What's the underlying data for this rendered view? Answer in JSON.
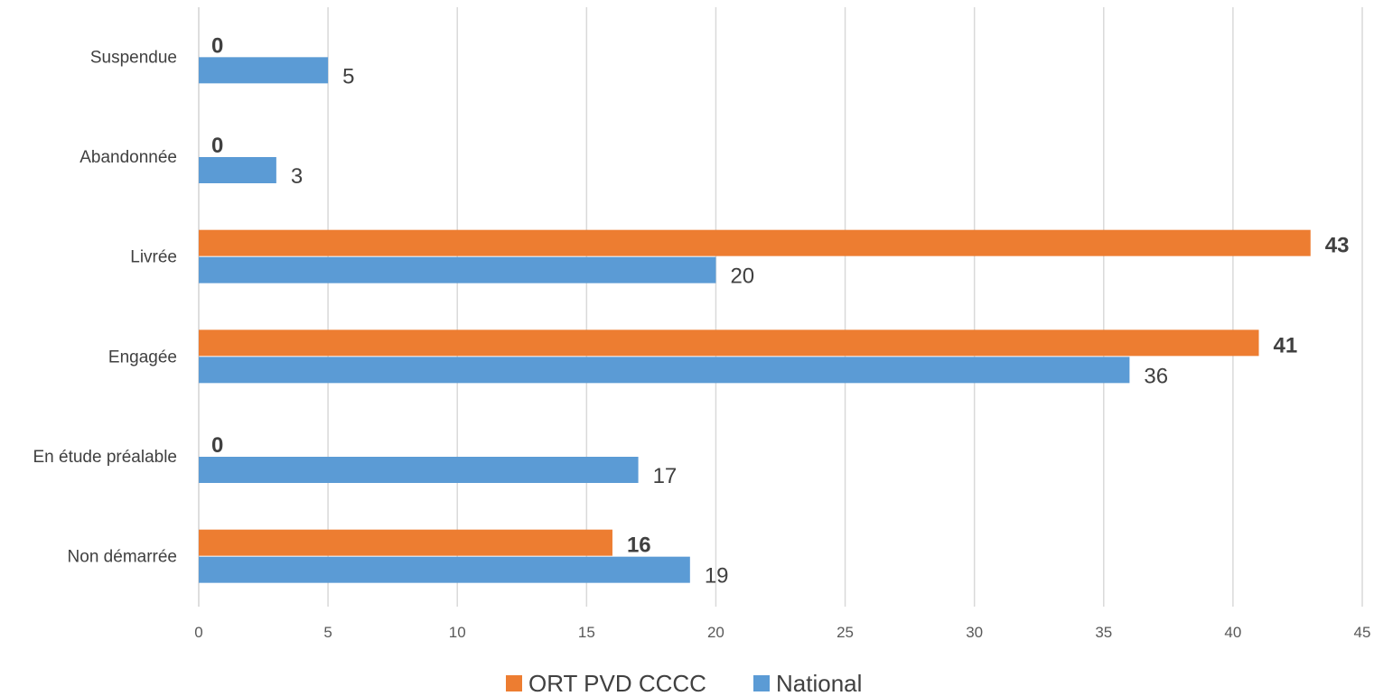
{
  "chart_data": {
    "type": "bar",
    "orientation": "horizontal",
    "categories": [
      "Non démarrée",
      "En étude préalable",
      "Engagée",
      "Livrée",
      "Abandonnée",
      "Suspendue"
    ],
    "series": [
      {
        "name": "ORT PVD CCCC",
        "color": "#ED7D31",
        "values": [
          16,
          0,
          41,
          43,
          0,
          0
        ],
        "labels": [
          "16",
          "0",
          "41",
          "43",
          "0",
          "0"
        ],
        "label_weight": "bold"
      },
      {
        "name": "National",
        "color": "#5B9BD5",
        "values": [
          19,
          17,
          36,
          20,
          3,
          5
        ],
        "labels": [
          "19",
          "17",
          "36",
          "20",
          "3",
          "5"
        ],
        "label_weight": "normal"
      }
    ],
    "xlim": [
      0,
      45
    ],
    "x_ticks": [
      "0",
      "5",
      "10",
      "15",
      "20",
      "25",
      "30",
      "35",
      "40",
      "45"
    ],
    "grid": true,
    "legend_position": "bottom",
    "title": "",
    "xlabel": "",
    "ylabel": ""
  }
}
